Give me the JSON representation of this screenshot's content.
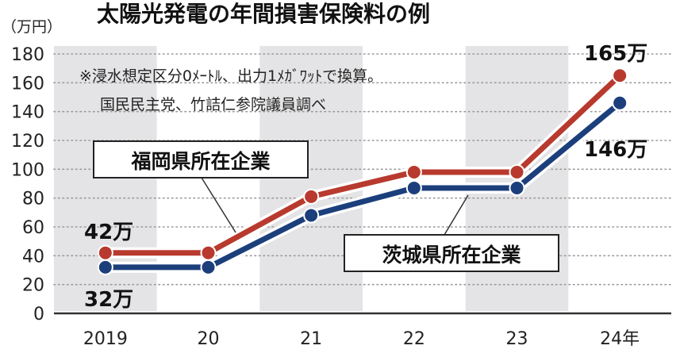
{
  "chart_data": {
    "type": "line",
    "title": "太陽光発電の年間損害保険料の例",
    "unit_label": "（万円）",
    "note_lines": [
      "※浸水想定区分0ﾒｰﾄﾙ、出力1ﾒｶﾞﾜｯﾄで換算。",
      "国民民主党、竹詰仁参院議員調べ"
    ],
    "categories": [
      "2019",
      "20",
      "21",
      "22",
      "23",
      "24年"
    ],
    "ylim": [
      0,
      180
    ],
    "yticks": [
      0,
      20,
      40,
      60,
      80,
      100,
      120,
      140,
      160,
      180
    ],
    "grid": true,
    "series": [
      {
        "name": "福岡県所在企業",
        "color": "#b83a2e",
        "values": [
          42,
          42,
          81,
          98,
          98,
          165
        ]
      },
      {
        "name": "茨城県所在企業",
        "color": "#1c3f7c",
        "values": [
          32,
          32,
          68,
          87,
          87,
          146
        ]
      }
    ],
    "annotations": [
      {
        "text": "42万",
        "series": 0,
        "index": 0
      },
      {
        "text": "32万",
        "series": 1,
        "index": 0
      },
      {
        "text": "165万",
        "series": 0,
        "index": 5
      },
      {
        "text": "146万",
        "series": 1,
        "index": 5
      }
    ]
  }
}
